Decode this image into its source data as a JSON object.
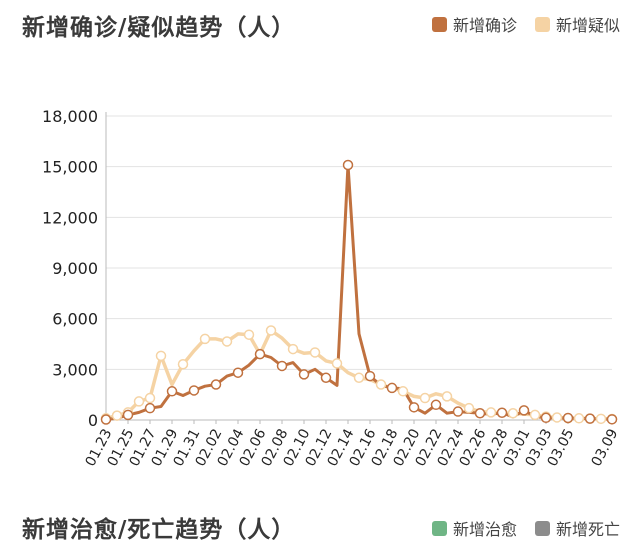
{
  "sections": [
    {
      "title": "新增确诊/疑似趋势（人）",
      "legend": [
        {
          "label": "新增确诊",
          "color": "#c0713f"
        },
        {
          "label": "新增疑似",
          "color": "#f5d3a4"
        }
      ]
    },
    {
      "title": "新增治愈/死亡趋势（人）",
      "legend": [
        {
          "label": "新增治愈",
          "color": "#6fb585"
        },
        {
          "label": "新增死亡",
          "color": "#8c8c8c"
        }
      ]
    }
  ],
  "chart_data": {
    "type": "line",
    "title": "新增确诊/疑似趋势（人）",
    "x": [
      "01.23",
      "01.24",
      "01.25",
      "01.26",
      "01.27",
      "01.28",
      "01.29",
      "01.30",
      "01.31",
      "02.01",
      "02.02",
      "02.03",
      "02.04",
      "02.05",
      "02.06",
      "02.07",
      "02.08",
      "02.09",
      "02.10",
      "02.11",
      "02.12",
      "02.13",
      "02.14",
      "02.15",
      "02.16",
      "02.17",
      "02.18",
      "02.19",
      "02.20",
      "02.21",
      "02.22",
      "02.23",
      "02.24",
      "02.25",
      "02.26",
      "02.27",
      "02.28",
      "02.29",
      "03.01",
      "03.02",
      "03.03",
      "03.04",
      "03.05",
      "03.06",
      "03.07",
      "03.08",
      "03.09"
    ],
    "x_tick_labels": [
      "01.23",
      "01.25",
      "01.27",
      "01.29",
      "01.31",
      "02.02",
      "02.04",
      "02.06",
      "02.08",
      "02.10",
      "02.12",
      "02.14",
      "02.16",
      "02.18",
      "02.20",
      "02.22",
      "02.24",
      "02.26",
      "02.28",
      "03.01",
      "03.03",
      "03.05",
      "03.09"
    ],
    "y_ticks": [
      "0",
      "3,000",
      "6,000",
      "9,000",
      "12,000",
      "15,000",
      "18,000"
    ],
    "ylim": [
      0,
      18000
    ],
    "grid": true,
    "legend_position": "top-right",
    "series": [
      {
        "name": "新增确诊",
        "color": "#c0713f",
        "values": [
          30,
          100,
          300,
          450,
          700,
          800,
          1700,
          1450,
          1750,
          2000,
          2100,
          2600,
          2800,
          3250,
          3900,
          3700,
          3200,
          3400,
          2700,
          3000,
          2500,
          2050,
          15100,
          5100,
          2600,
          2050,
          1900,
          1850,
          750,
          400,
          900,
          400,
          500,
          450,
          400,
          330,
          430,
          180,
          570,
          200,
          130,
          120,
          120,
          100,
          80,
          60,
          40
        ]
      },
      {
        "name": "新增疑似",
        "color": "#f5d3a4",
        "values": [
          100,
          260,
          450,
          1100,
          1300,
          3800,
          2100,
          3300,
          4100,
          4800,
          4800,
          4650,
          5100,
          5050,
          3900,
          5300,
          4850,
          4200,
          3950,
          4000,
          3500,
          3350,
          2800,
          2500,
          2400,
          2100,
          1900,
          1700,
          1400,
          1300,
          1550,
          1400,
          1000,
          700,
          500,
          450,
          420,
          400,
          350,
          300,
          200,
          150,
          100,
          100,
          80,
          70,
          60
        ]
      }
    ]
  }
}
